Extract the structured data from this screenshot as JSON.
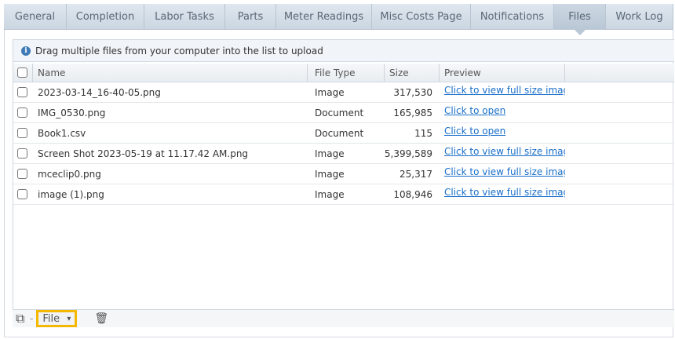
{
  "tabs": [
    {
      "label": "General"
    },
    {
      "label": "Completion"
    },
    {
      "label": "Labor Tasks"
    },
    {
      "label": "Parts"
    },
    {
      "label": "Meter Readings"
    },
    {
      "label": "Misc Costs Page"
    },
    {
      "label": "Notifications"
    },
    {
      "label": "Files",
      "active": true
    },
    {
      "label": "Work Log"
    }
  ],
  "info": {
    "icon": "info-icon",
    "text": "Drag multiple files from your computer into the list to upload"
  },
  "columns": {
    "name": "Name",
    "type": "File Type",
    "size": "Size",
    "preview": "Preview"
  },
  "rows": [
    {
      "name": "2023-03-14_16-40-05.png",
      "type": "Image",
      "size": "317,530",
      "preview": "Click to view full size image"
    },
    {
      "name": "IMG_0530.png",
      "type": "Document",
      "size": "165,985",
      "preview": "Click to open"
    },
    {
      "name": "Book1.csv",
      "type": "Document",
      "size": "115",
      "preview": "Click to open"
    },
    {
      "name": "Screen Shot 2023-05-19 at 11.17.42 AM.png",
      "type": "Image",
      "size": "5,399,589",
      "preview": "Click to view full size image"
    },
    {
      "name": "mceclip0.png",
      "type": "Image",
      "size": "25,317",
      "preview": "Click to view full size image"
    },
    {
      "name": "image (1).png",
      "type": "Image",
      "size": "108,946",
      "preview": "Click to view full size image"
    }
  ],
  "toolbar": {
    "add_icon": "add-file-icon",
    "select_value": "File",
    "delete_icon": "trash-icon",
    "highlight_color": "#f5b800"
  }
}
